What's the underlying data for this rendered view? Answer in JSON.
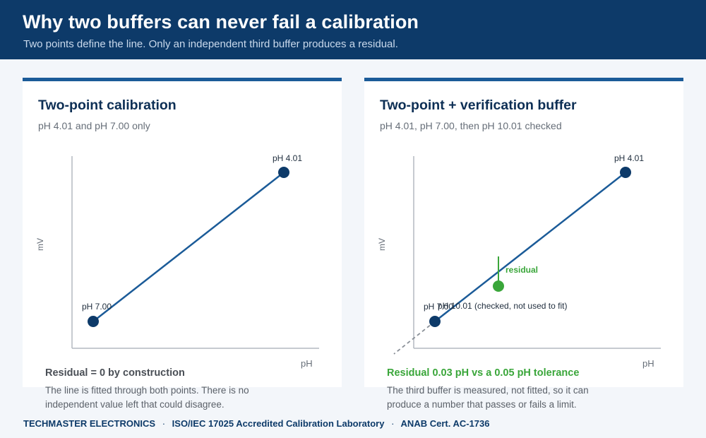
{
  "header": {
    "title": "Why two buffers can never fail a calibration",
    "subtitle": "Two points define the line. Only an independent third buffer produces a residual."
  },
  "panels": {
    "left": {
      "title": "Two-point calibration",
      "subtitle": "pH 4.01 and pH 7.00 only",
      "ylabel": "mV",
      "xlabel": "pH",
      "point_top_label": "pH 4.01",
      "point_bottom_label": "pH 7.00",
      "result": "Residual = 0 by construction",
      "note": "The line is fitted through both points. There is no independent value left that could disagree."
    },
    "right": {
      "title": "Two-point + verification buffer",
      "subtitle": "pH 4.01, pH 7.00, then pH 10.01 checked",
      "ylabel": "mV",
      "xlabel": "pH",
      "point_top_label": "pH 4.01",
      "point_bottom_label": "pH 7.00",
      "verification_label": "pH 10.01 (checked, not used to fit)",
      "residual_label": "residual",
      "result": "Residual 0.03 pH vs a 0.05 pH tolerance",
      "note": "The third buffer is measured, not fitted, so it can produce a number that passes or fails a limit."
    }
  },
  "footer": {
    "company": "TECHMASTER ELECTRONICS",
    "separator": "·",
    "accreditation": "ISO/IEC 17025 Accredited Calibration Laboratory",
    "cert": "ANAB Cert. AC-1736"
  },
  "colors": {
    "header_bg": "#0d3a69",
    "line": "#1b5b98",
    "point": "#0d3a69",
    "residual": "#3aa63a"
  }
}
